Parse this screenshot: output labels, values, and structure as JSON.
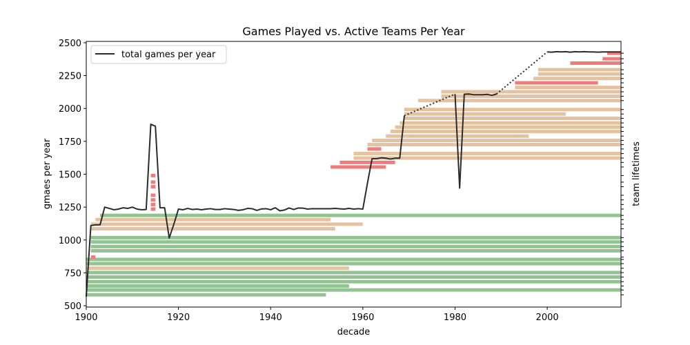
{
  "chart_data": {
    "type": "line",
    "title": "Games Played vs. Active Teams Per Year",
    "xlabel": "decade",
    "ylabel": "gmaes per year",
    "ylabel_right": "team lifetimes",
    "xlim": [
      1900,
      2016
    ],
    "ylim": [
      490,
      2510
    ],
    "x_ticks": [
      1900,
      1920,
      1940,
      1960,
      1980,
      2000
    ],
    "y_ticks": [
      500,
      750,
      1000,
      1250,
      1500,
      1750,
      2000,
      2250,
      2500
    ],
    "legend": {
      "position": "upper-left",
      "entries": [
        "total games per year"
      ]
    },
    "series": [
      {
        "name": "total games per year",
        "style": "solid",
        "color": "#2a2a2a",
        "points": [
          [
            1900,
            570
          ],
          [
            1901,
            1110
          ],
          [
            1902,
            1115
          ],
          [
            1903,
            1115
          ],
          [
            1904,
            1250
          ],
          [
            1905,
            1240
          ],
          [
            1906,
            1230
          ],
          [
            1907,
            1235
          ],
          [
            1908,
            1245
          ],
          [
            1909,
            1240
          ],
          [
            1910,
            1250
          ],
          [
            1911,
            1235
          ],
          [
            1912,
            1230
          ],
          [
            1913,
            1232
          ],
          [
            1914,
            1880
          ],
          [
            1915,
            1865
          ],
          [
            1916,
            1245
          ],
          [
            1917,
            1245
          ],
          [
            1918,
            1015
          ],
          [
            1919,
            1120
          ],
          [
            1920,
            1235
          ],
          [
            1921,
            1230
          ],
          [
            1922,
            1240
          ],
          [
            1923,
            1232
          ],
          [
            1924,
            1235
          ],
          [
            1925,
            1230
          ],
          [
            1926,
            1235
          ],
          [
            1927,
            1238
          ],
          [
            1928,
            1232
          ],
          [
            1929,
            1232
          ],
          [
            1930,
            1238
          ],
          [
            1931,
            1235
          ],
          [
            1932,
            1232
          ],
          [
            1933,
            1225
          ],
          [
            1934,
            1230
          ],
          [
            1935,
            1240
          ],
          [
            1936,
            1238
          ],
          [
            1937,
            1225
          ],
          [
            1938,
            1236
          ],
          [
            1939,
            1238
          ],
          [
            1940,
            1230
          ],
          [
            1941,
            1245
          ],
          [
            1942,
            1222
          ],
          [
            1943,
            1228
          ],
          [
            1944,
            1243
          ],
          [
            1945,
            1232
          ],
          [
            1946,
            1243
          ],
          [
            1947,
            1242
          ],
          [
            1948,
            1235
          ],
          [
            1949,
            1238
          ],
          [
            1950,
            1238
          ],
          [
            1951,
            1238
          ],
          [
            1952,
            1238
          ],
          [
            1953,
            1238
          ],
          [
            1954,
            1240
          ],
          [
            1955,
            1237
          ],
          [
            1956,
            1235
          ],
          [
            1957,
            1240
          ],
          [
            1958,
            1235
          ],
          [
            1959,
            1238
          ],
          [
            1960,
            1235
          ],
          [
            1961,
            1432
          ],
          [
            1962,
            1618
          ],
          [
            1963,
            1618
          ],
          [
            1964,
            1625
          ],
          [
            1965,
            1622
          ],
          [
            1966,
            1615
          ],
          [
            1967,
            1622
          ],
          [
            1968,
            1622
          ],
          [
            1969,
            1945
          ]
        ]
      },
      {
        "name": "",
        "style": "dotted",
        "color": "#2a2a2a",
        "points": [
          [
            1969,
            1945
          ],
          [
            1980,
            2110
          ]
        ]
      },
      {
        "name": "",
        "style": "solid",
        "color": "#2a2a2a",
        "points": [
          [
            1980,
            2110
          ],
          [
            1981,
            1395
          ],
          [
            1982,
            2108
          ],
          [
            1983,
            2110
          ],
          [
            1984,
            2105
          ],
          [
            1985,
            2105
          ],
          [
            1986,
            2105
          ],
          [
            1987,
            2107
          ],
          [
            1988,
            2100
          ],
          [
            1989,
            2110
          ]
        ]
      },
      {
        "name": "",
        "style": "dotted",
        "color": "#2a2a2a",
        "points": [
          [
            1989,
            2110
          ],
          [
            2000,
            2430
          ]
        ]
      },
      {
        "name": "",
        "style": "solid",
        "color": "#2a2a2a",
        "points": [
          [
            2000,
            2430
          ],
          [
            2001,
            2428
          ],
          [
            2002,
            2432
          ],
          [
            2003,
            2430
          ],
          [
            2004,
            2432
          ],
          [
            2005,
            2428
          ],
          [
            2006,
            2432
          ],
          [
            2007,
            2430
          ],
          [
            2008,
            2432
          ],
          [
            2009,
            2430
          ],
          [
            2010,
            2430
          ],
          [
            2011,
            2428
          ],
          [
            2012,
            2430
          ],
          [
            2013,
            2430
          ],
          [
            2014,
            2430
          ],
          [
            2015,
            2430
          ],
          [
            2016,
            2430
          ]
        ]
      }
    ],
    "colors": {
      "long_lived": "#93c393",
      "medium": "#e4c29f",
      "short": "#f07b7b"
    },
    "team_lifetimes": [
      {
        "y": 620,
        "start": 1900,
        "end": 2016,
        "kind": "long_lived"
      },
      {
        "y": 583,
        "start": 1900,
        "end": 1952,
        "kind": "long_lived"
      },
      {
        "y": 650,
        "start": 1900,
        "end": 1957,
        "kind": "long_lived"
      },
      {
        "y": 683,
        "start": 1900,
        "end": 2016,
        "kind": "long_lived"
      },
      {
        "y": 718,
        "start": 1900,
        "end": 2016,
        "kind": "long_lived"
      },
      {
        "y": 752,
        "start": 1900,
        "end": 2016,
        "kind": "long_lived"
      },
      {
        "y": 785,
        "start": 1900,
        "end": 1957,
        "kind": "medium"
      },
      {
        "y": 820,
        "start": 1900,
        "end": 2016,
        "kind": "long_lived"
      },
      {
        "y": 852,
        "start": 1900,
        "end": 2016,
        "kind": "long_lived"
      },
      {
        "y": 870,
        "start": 1901,
        "end": 1902,
        "kind": "short"
      },
      {
        "y": 918,
        "start": 1901,
        "end": 2016,
        "kind": "long_lived"
      },
      {
        "y": 950,
        "start": 1901,
        "end": 2016,
        "kind": "long_lived"
      },
      {
        "y": 985,
        "start": 1901,
        "end": 2016,
        "kind": "long_lived"
      },
      {
        "y": 1018,
        "start": 1901,
        "end": 2016,
        "kind": "long_lived"
      },
      {
        "y": 1085,
        "start": 1901,
        "end": 1954,
        "kind": "medium"
      },
      {
        "y": 1120,
        "start": 1901,
        "end": 1960,
        "kind": "medium"
      },
      {
        "y": 1155,
        "start": 1902,
        "end": 1953,
        "kind": "medium"
      },
      {
        "y": 1187,
        "start": 1903,
        "end": 2016,
        "kind": "long_lived"
      },
      {
        "y": 1235,
        "start": 1914,
        "end": 1915,
        "kind": "short"
      },
      {
        "y": 1270,
        "start": 1914,
        "end": 1915,
        "kind": "short"
      },
      {
        "y": 1305,
        "start": 1914,
        "end": 1915,
        "kind": "short"
      },
      {
        "y": 1340,
        "start": 1914,
        "end": 1915,
        "kind": "short"
      },
      {
        "y": 1405,
        "start": 1914,
        "end": 1915,
        "kind": "short"
      },
      {
        "y": 1440,
        "start": 1914,
        "end": 1915,
        "kind": "short"
      },
      {
        "y": 1490,
        "start": 1914,
        "end": 1915,
        "kind": "short"
      },
      {
        "y": 1555,
        "start": 1953,
        "end": 1965,
        "kind": "short"
      },
      {
        "y": 1590,
        "start": 1955,
        "end": 1967,
        "kind": "short"
      },
      {
        "y": 1623,
        "start": 1958,
        "end": 2016,
        "kind": "medium"
      },
      {
        "y": 1657,
        "start": 1958,
        "end": 2016,
        "kind": "medium"
      },
      {
        "y": 1692,
        "start": 1961,
        "end": 1964,
        "kind": "short"
      },
      {
        "y": 1725,
        "start": 1961,
        "end": 2016,
        "kind": "medium"
      },
      {
        "y": 1757,
        "start": 1962,
        "end": 2016,
        "kind": "medium"
      },
      {
        "y": 1790,
        "start": 1965,
        "end": 1996,
        "kind": "medium"
      },
      {
        "y": 1825,
        "start": 1966,
        "end": 2016,
        "kind": "medium"
      },
      {
        "y": 1858,
        "start": 1967,
        "end": 2016,
        "kind": "medium"
      },
      {
        "y": 1890,
        "start": 1968,
        "end": 2016,
        "kind": "medium"
      },
      {
        "y": 1925,
        "start": 1969,
        "end": 2016,
        "kind": "medium"
      },
      {
        "y": 1958,
        "start": 1969,
        "end": 2004,
        "kind": "medium"
      },
      {
        "y": 1992,
        "start": 1969,
        "end": 2016,
        "kind": "medium"
      },
      {
        "y": 2060,
        "start": 1972,
        "end": 2016,
        "kind": "medium"
      },
      {
        "y": 2093,
        "start": 1977,
        "end": 2016,
        "kind": "medium"
      },
      {
        "y": 2127,
        "start": 1977,
        "end": 2016,
        "kind": "medium"
      },
      {
        "y": 2160,
        "start": 1993,
        "end": 2016,
        "kind": "medium"
      },
      {
        "y": 2195,
        "start": 1993,
        "end": 2011,
        "kind": "short"
      },
      {
        "y": 2228,
        "start": 1997,
        "end": 2016,
        "kind": "medium"
      },
      {
        "y": 2262,
        "start": 1998,
        "end": 2016,
        "kind": "medium"
      },
      {
        "y": 2295,
        "start": 1998,
        "end": 2016,
        "kind": "medium"
      },
      {
        "y": 2345,
        "start": 2005,
        "end": 2016,
        "kind": "short"
      },
      {
        "y": 2378,
        "start": 2012,
        "end": 2016,
        "kind": "short"
      },
      {
        "y": 2420,
        "start": 2013,
        "end": 2016,
        "kind": "short"
      }
    ]
  }
}
